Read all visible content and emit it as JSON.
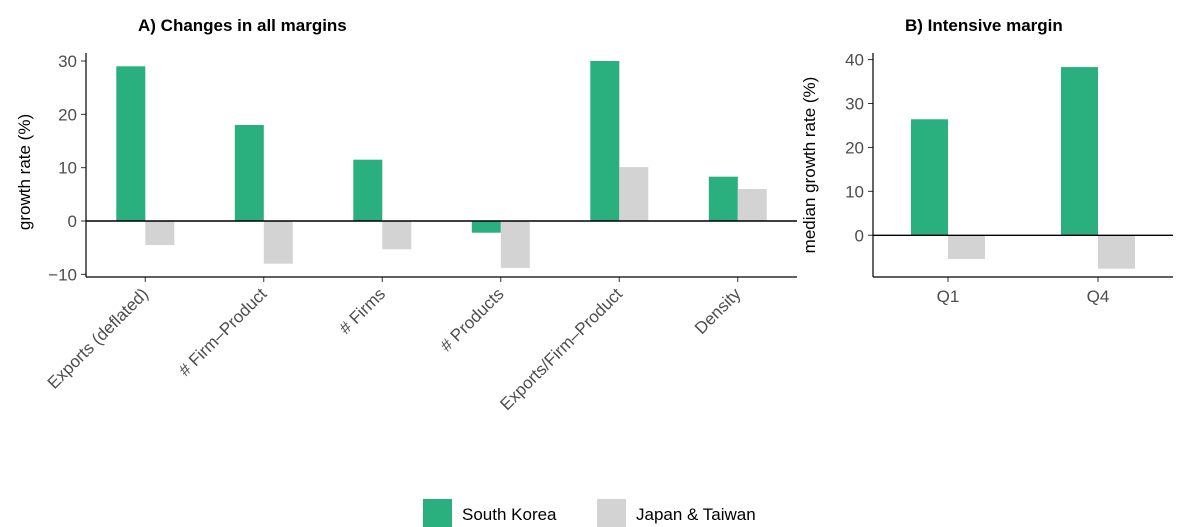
{
  "colors": {
    "south_korea": "#2aaf7f",
    "japan_taiwan": "#d3d3d3",
    "axis": "#000000",
    "tick_text": "#4d4d4d"
  },
  "legend": {
    "position": "bottom",
    "items": [
      "South Korea",
      "Japan & Taiwan"
    ]
  },
  "chart_data": [
    {
      "id": "panel-a",
      "type": "bar",
      "title": "A) Changes in all margins",
      "xlabel": "",
      "ylabel": "growth rate (%)",
      "ylim": [
        -10.5,
        31.5
      ],
      "yticks": [
        30,
        20,
        10,
        0,
        -10
      ],
      "ytick_labels": [
        "30",
        "20",
        "10",
        "0",
        "−10"
      ],
      "categories": [
        "Exports (deflated)",
        "# Firm–Product",
        "# Firms",
        "# Products",
        "Exports/Firm–Product",
        "Density"
      ],
      "series": [
        {
          "name": "South Korea",
          "values": [
            29,
            18,
            11.5,
            -2.2,
            30,
            8.3
          ]
        },
        {
          "name": "Japan & Taiwan",
          "values": [
            -4.5,
            -8,
            -5.3,
            -8.8,
            10.1,
            6
          ]
        }
      ]
    },
    {
      "id": "panel-b",
      "type": "bar",
      "title": "B) Intensive margin",
      "xlabel": "",
      "ylabel": "median growth rate (%)",
      "ylim": [
        -9.5,
        41.5
      ],
      "yticks": [
        40,
        30,
        20,
        10,
        0
      ],
      "ytick_labels": [
        "40",
        "30",
        "20",
        "10",
        "0"
      ],
      "categories": [
        "Q1",
        "Q4"
      ],
      "series": [
        {
          "name": "South Korea",
          "values": [
            26.4,
            38.3
          ]
        },
        {
          "name": "Japan & Taiwan",
          "values": [
            -5.4,
            -7.6
          ]
        }
      ]
    }
  ]
}
